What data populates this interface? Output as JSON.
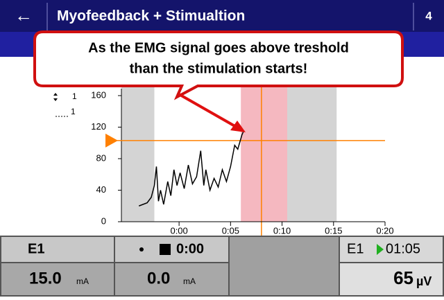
{
  "header": {
    "back": "←",
    "title": "Myofeedback + Stimualtion",
    "page": "4"
  },
  "callout": {
    "lines": [
      "As the EMG signal goes above treshold",
      "than the stimulation starts!"
    ]
  },
  "chart_data": {
    "type": "line",
    "x": [
      -3.9,
      -3.1,
      -2.7,
      -2.4,
      -2.2,
      -2.0,
      -1.8,
      -1.5,
      -1.1,
      -0.8,
      -0.5,
      -0.2,
      0.1,
      0.5,
      0.9,
      1.3,
      1.7,
      2.1,
      2.4,
      2.6,
      3.0,
      3.4,
      3.8,
      4.2,
      4.6,
      5.0,
      5.4,
      5.7,
      6.1,
      6.3
    ],
    "series": [
      {
        "color": "#000000",
        "values": [
          20,
          24,
          31,
          46,
          70,
          26,
          40,
          22,
          51,
          33,
          66,
          46,
          62,
          42,
          72,
          48,
          57,
          90,
          46,
          66,
          40,
          55,
          44,
          66,
          51,
          70,
          97,
          92,
          110,
          116
        ]
      }
    ],
    "legend": [
      "1",
      "1"
    ],
    "xlim": [
      -5.6,
      20
    ],
    "xticks": [
      {
        "value": 0,
        "label": "0:00"
      },
      {
        "value": 5,
        "label": "0:05"
      },
      {
        "value": 10,
        "label": "0:10"
      },
      {
        "value": 15,
        "label": "0:15"
      },
      {
        "value": 20,
        "label": "0:20"
      }
    ],
    "ylim": [
      0,
      160
    ],
    "yticks": [
      0,
      40,
      80,
      120,
      160
    ],
    "threshold": 103,
    "threshold_color": "#ff8000",
    "marker_x": 8,
    "gray_bands": [
      [
        -5.6,
        -2.4
      ],
      [
        10.5,
        15.3
      ]
    ],
    "stim_band": [
      6,
      10.5
    ]
  },
  "panels": [
    {
      "label": "E1",
      "value": "15.0",
      "unit": "mA"
    },
    {
      "time": "0:00",
      "value": "0.0",
      "unit": "mA"
    },
    {
      "label": "E1",
      "time": "01:05",
      "value": "65",
      "unit": "µV"
    }
  ]
}
